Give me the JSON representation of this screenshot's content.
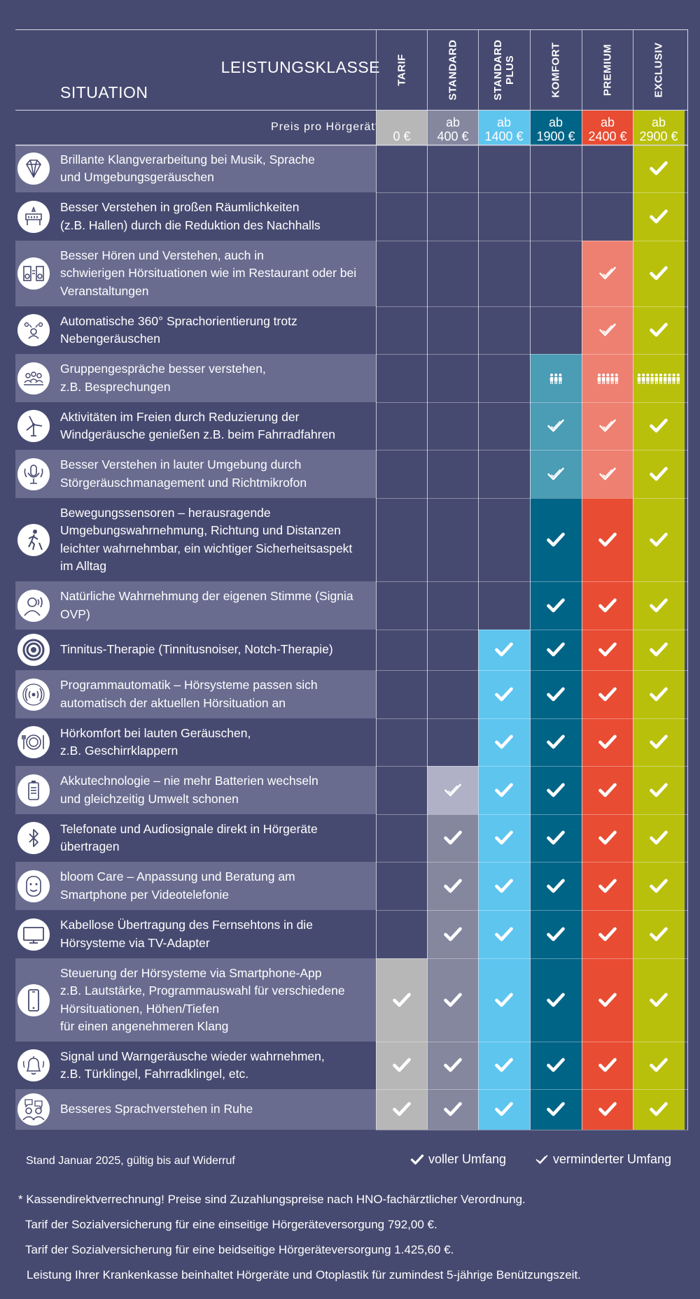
{
  "colors": {
    "background": "#474a70",
    "row_light": "#696c8f",
    "row_dark": "#474a70",
    "levels": {
      "tarif": "#b7b7b7",
      "standard": "#85879f",
      "standard_plus": "#5ec5ef",
      "komfort": "#006487",
      "premium": "#e84c33",
      "exclusiv": "#b8c00c"
    },
    "reduced": {
      "standard": "#b0b1c6",
      "komfort": "#4b9cb5",
      "premium": "#ee8071"
    }
  },
  "header": {
    "leistungsklasse": "LEISTUNGSKLASSE",
    "situation": "SITUATION",
    "price_label": "Preis pro Hörgerät*"
  },
  "chart_data": {
    "type": "table",
    "levels": [
      {
        "key": "tarif",
        "name_lines": [
          "TARIF"
        ],
        "price_lines": [
          "0 €"
        ]
      },
      {
        "key": "standard",
        "name_lines": [
          "STANDARD"
        ],
        "price_lines": [
          "ab",
          "400 €"
        ]
      },
      {
        "key": "standard_plus",
        "name_lines": [
          "STANDARD",
          "PLUS"
        ],
        "price_lines": [
          "ab",
          "1400 €"
        ]
      },
      {
        "key": "komfort",
        "name_lines": [
          "KOMFORT"
        ],
        "price_lines": [
          "ab",
          "1900 €"
        ]
      },
      {
        "key": "premium",
        "name_lines": [
          "PREMIUM"
        ],
        "price_lines": [
          "ab",
          "2400 €"
        ]
      },
      {
        "key": "exclusiv",
        "name_lines": [
          "EXCLUSIV"
        ],
        "price_lines": [
          "ab",
          "2900 €"
        ]
      }
    ],
    "value_legend": {
      "full": "voller Umfang",
      "reduced": "verminderter Umfang"
    },
    "rows": [
      {
        "icon": "diamond-icon",
        "lines": [
          "Brillante Klangverarbeitung bei Musik, Sprache",
          "und Umgebungsgeräuschen"
        ],
        "values": [
          "",
          "",
          "",
          "",
          "",
          "full"
        ]
      },
      {
        "icon": "hall-icon",
        "lines": [
          "Besser Verstehen in großen Räumlichkeiten",
          "(z.B. Hallen) durch die Reduktion des Nachhalls"
        ],
        "values": [
          "",
          "",
          "",
          "",
          "",
          "full"
        ]
      },
      {
        "icon": "restaurant-speaker-icon",
        "lines": [
          "Besser Hören und Verstehen, auch in",
          "schwierigen Hörsituationen wie im Restaurant oder bei",
          "Veranstaltungen"
        ],
        "values": [
          "",
          "",
          "",
          "",
          "reduced",
          "full"
        ]
      },
      {
        "icon": "speech-360-icon",
        "lines": [
          "Automatische 360° Sprachorientierung trotz",
          "Nebengeräuschen"
        ],
        "values": [
          "",
          "",
          "",
          "",
          "reduced",
          "full"
        ]
      },
      {
        "icon": "group-icon",
        "lines": [
          "Gruppengespräche besser verstehen,",
          "z.B. Besprechungen"
        ],
        "values": [
          "",
          "",
          "",
          "people:3",
          "people:5",
          "people:10"
        ]
      },
      {
        "icon": "wind-turbine-icon",
        "lines": [
          "Aktivitäten im Freien durch Reduzierung der",
          "Windgeräusche genießen z.B. beim Fahrradfahren"
        ],
        "values": [
          "",
          "",
          "",
          "reduced",
          "reduced",
          "full"
        ]
      },
      {
        "icon": "microphone-icon",
        "lines": [
          "Besser Verstehen in lauter Umgebung durch",
          "Störgeräuschmanagement und Richtmikrofon"
        ],
        "values": [
          "",
          "",
          "",
          "reduced",
          "reduced",
          "full"
        ]
      },
      {
        "icon": "walking-person-icon",
        "lines": [
          "Bewegungssensoren – herausragende",
          "Umgebungswahrnehmung, Richtung und Distanzen",
          "leichter wahrnehmbar, ein wichtiger Sicherheitsaspekt",
          "im Alltag"
        ],
        "values": [
          "",
          "",
          "",
          "full",
          "full",
          "full"
        ]
      },
      {
        "icon": "own-voice-icon",
        "lines": [
          "Natürliche Wahrnehmung der eigenen Stimme (Signia",
          "OVP)"
        ],
        "values": [
          "",
          "",
          "",
          "full",
          "full",
          "full"
        ]
      },
      {
        "icon": "target-icon",
        "lines": [
          "Tinnitus-Therapie (Tinnitusnoiser, Notch-Therapie)"
        ],
        "values": [
          "",
          "",
          "full",
          "full",
          "full",
          "full"
        ]
      },
      {
        "icon": "sound-waves-icon",
        "lines": [
          "Programmautomatik – Hörsysteme passen sich",
          "automatisch der aktuellen Hörsituation an"
        ],
        "values": [
          "",
          "",
          "full",
          "full",
          "full",
          "full"
        ]
      },
      {
        "icon": "plate-icon",
        "lines": [
          "Hörkomfort bei lauten Geräuschen,",
          "z.B. Geschirrklappern"
        ],
        "values": [
          "",
          "",
          "full",
          "full",
          "full",
          "full"
        ]
      },
      {
        "icon": "battery-icon",
        "lines": [
          "Akkutechnologie – nie mehr Batterien wechseln",
          "und gleichzeitig Umwelt schonen"
        ],
        "values": [
          "",
          "reduced",
          "full",
          "full",
          "full",
          "full"
        ]
      },
      {
        "icon": "bluetooth-icon",
        "lines": [
          "Telefonate und Audiosignale direkt in Hörgeräte",
          "übertragen"
        ],
        "values": [
          "",
          "full",
          "full",
          "full",
          "full",
          "full"
        ]
      },
      {
        "icon": "face-icon",
        "lines": [
          "bloom Care – Anpassung und Beratung am",
          "Smartphone per Videotelefonie"
        ],
        "values": [
          "",
          "full",
          "full",
          "full",
          "full",
          "full"
        ]
      },
      {
        "icon": "tv-icon",
        "lines": [
          "Kabellose Übertragung des Fernsehtons in die",
          "Hörsysteme via TV-Adapter"
        ],
        "values": [
          "",
          "full",
          "full",
          "full",
          "full",
          "full"
        ]
      },
      {
        "icon": "smartphone-icon",
        "lines": [
          "Steuerung der Hörsysteme via Smartphone-App",
          "z.B. Lautstärke, Programmauswahl für verschiedene",
          "Hörsituationen, Höhen/Tiefen",
          "für einen angenehmeren Klang"
        ],
        "values": [
          "full",
          "full",
          "full",
          "full",
          "full",
          "full"
        ]
      },
      {
        "icon": "bell-icon",
        "lines": [
          "Signal und Warngeräusche wieder wahrnehmen,",
          "z.B. Türklingel, Fahrradklingel, etc."
        ],
        "values": [
          "full",
          "full",
          "full",
          "full",
          "full",
          "full"
        ]
      },
      {
        "icon": "conversation-icon",
        "lines": [
          "Besseres Sprachverstehen in Ruhe"
        ],
        "values": [
          "full",
          "full",
          "full",
          "full",
          "full",
          "full"
        ]
      }
    ]
  },
  "footer": {
    "stand": "Stand Januar 2025, gültig bis auf Widerruf",
    "notes": [
      "* Kassendirektverrechnung! Preise sind Zuzahlungspreise nach HNO-fachärztlicher Verordnung.",
      "Tarif der Sozialversicherung für eine einseitige Hörgeräteversorgung 792,00 €.",
      "Tarif der Sozialversicherung für eine beidseitige Hörgeräteversorgung 1.425,60 €.",
      "Leistung Ihrer Krankenkasse beinhaltet Hörgeräte und Otoplastik für zumindest 5-jährige Benützungszeit."
    ]
  }
}
